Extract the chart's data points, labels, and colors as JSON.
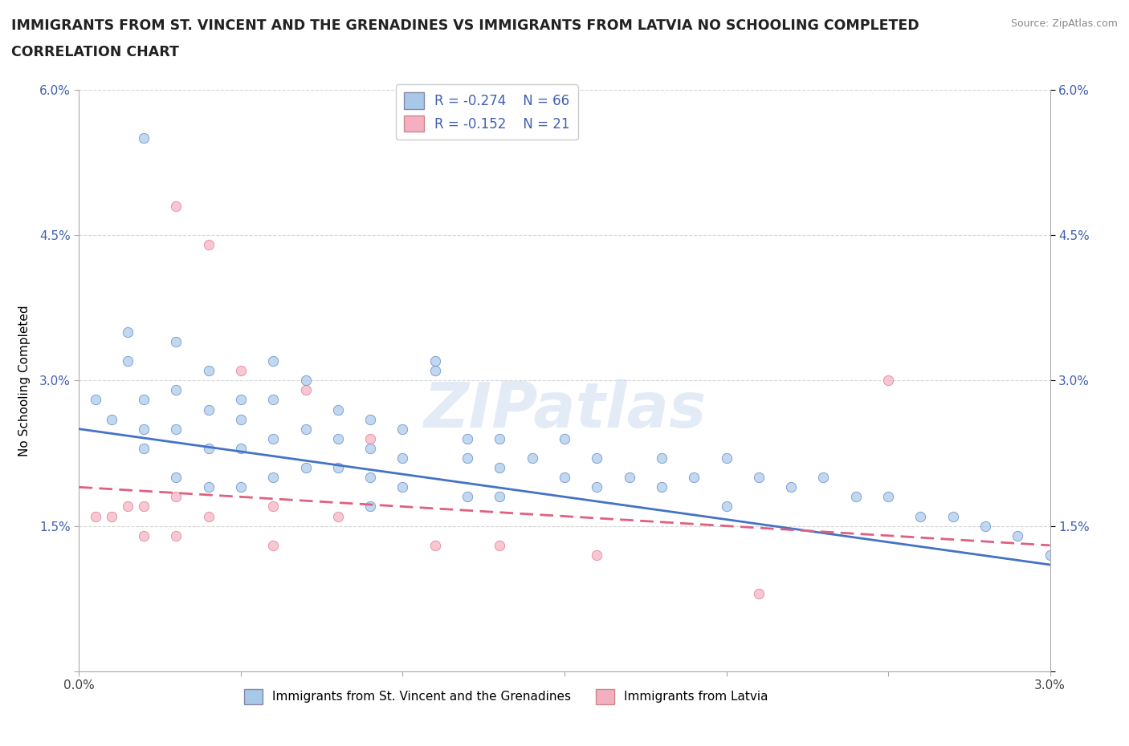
{
  "title_line1": "IMMIGRANTS FROM ST. VINCENT AND THE GRENADINES VS IMMIGRANTS FROM LATVIA NO SCHOOLING COMPLETED",
  "title_line2": "CORRELATION CHART",
  "source": "Source: ZipAtlas.com",
  "ylabel": "No Schooling Completed",
  "xlim": [
    0,
    0.03
  ],
  "ylim": [
    0,
    0.06
  ],
  "xticks": [
    0.0,
    0.005,
    0.01,
    0.015,
    0.02,
    0.025,
    0.03
  ],
  "yticks": [
    0.0,
    0.015,
    0.03,
    0.045,
    0.06
  ],
  "xtick_labels": [
    "0.0%",
    "",
    "",
    "",
    "",
    "",
    "3.0%"
  ],
  "ytick_labels": [
    "",
    "1.5%",
    "3.0%",
    "4.5%",
    "6.0%"
  ],
  "legend_r1": "R = -0.274",
  "legend_n1": "N = 66",
  "legend_r2": "R = -0.152",
  "legend_n2": "N = 21",
  "color_blue": "#a8c8e8",
  "color_pink": "#f4b0c0",
  "color_blue_line": "#4472c4",
  "color_pink_line": "#e06080",
  "color_legend_text": "#4060b0",
  "watermark_text": "ZIPatlas",
  "grid_color": "#cccccc",
  "background_color": "#ffffff",
  "title_fontsize": 12.5,
  "axis_label_fontsize": 11,
  "tick_fontsize": 11,
  "blue_trend_x0": 0.0,
  "blue_trend_y0": 0.025,
  "blue_trend_x1": 0.03,
  "blue_trend_y1": 0.011,
  "pink_trend_x0": 0.0,
  "pink_trend_y0": 0.019,
  "pink_trend_x1": 0.03,
  "pink_trend_y1": 0.013,
  "blue_x": [
    0.0005,
    0.001,
    0.0015,
    0.0015,
    0.002,
    0.002,
    0.002,
    0.003,
    0.003,
    0.003,
    0.003,
    0.004,
    0.004,
    0.004,
    0.004,
    0.005,
    0.005,
    0.005,
    0.005,
    0.006,
    0.006,
    0.006,
    0.006,
    0.007,
    0.007,
    0.007,
    0.008,
    0.008,
    0.008,
    0.009,
    0.009,
    0.009,
    0.009,
    0.01,
    0.01,
    0.01,
    0.011,
    0.011,
    0.012,
    0.012,
    0.012,
    0.013,
    0.013,
    0.013,
    0.014,
    0.015,
    0.015,
    0.016,
    0.016,
    0.017,
    0.018,
    0.018,
    0.019,
    0.02,
    0.02,
    0.021,
    0.022,
    0.023,
    0.024,
    0.025,
    0.026,
    0.027,
    0.028,
    0.029,
    0.03,
    0.002
  ],
  "blue_y": [
    0.028,
    0.026,
    0.035,
    0.032,
    0.055,
    0.028,
    0.023,
    0.034,
    0.029,
    0.025,
    0.02,
    0.031,
    0.027,
    0.023,
    0.019,
    0.028,
    0.026,
    0.023,
    0.019,
    0.032,
    0.028,
    0.024,
    0.02,
    0.03,
    0.025,
    0.021,
    0.027,
    0.024,
    0.021,
    0.026,
    0.023,
    0.02,
    0.017,
    0.025,
    0.022,
    0.019,
    0.032,
    0.031,
    0.024,
    0.022,
    0.018,
    0.024,
    0.021,
    0.018,
    0.022,
    0.024,
    0.02,
    0.022,
    0.019,
    0.02,
    0.022,
    0.019,
    0.02,
    0.022,
    0.017,
    0.02,
    0.019,
    0.02,
    0.018,
    0.018,
    0.016,
    0.016,
    0.015,
    0.014,
    0.012,
    0.025
  ],
  "pink_x": [
    0.0005,
    0.001,
    0.0015,
    0.002,
    0.002,
    0.003,
    0.003,
    0.003,
    0.004,
    0.004,
    0.005,
    0.006,
    0.006,
    0.007,
    0.008,
    0.009,
    0.011,
    0.013,
    0.016,
    0.021,
    0.025
  ],
  "pink_y": [
    0.016,
    0.016,
    0.017,
    0.017,
    0.014,
    0.048,
    0.018,
    0.014,
    0.044,
    0.016,
    0.031,
    0.017,
    0.013,
    0.029,
    0.016,
    0.024,
    0.013,
    0.013,
    0.012,
    0.008,
    0.03
  ]
}
